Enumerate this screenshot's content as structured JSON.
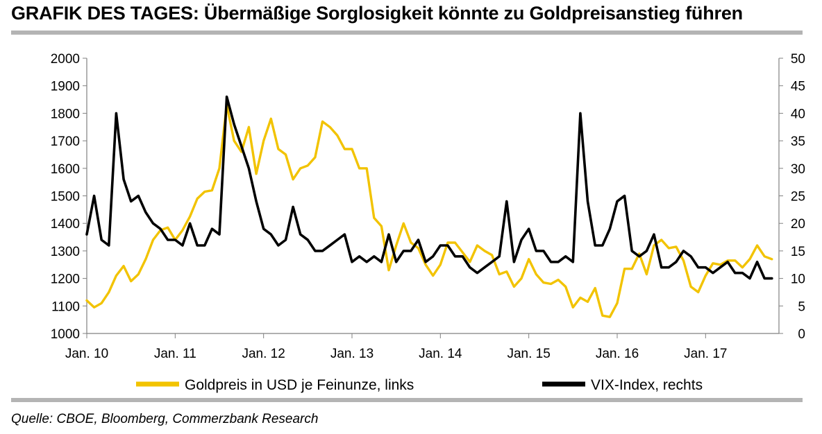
{
  "title": "GRAFIK DES TAGES: Übermäßige Sorglosigkeit könnte zu Goldpreisanstieg führen",
  "source": "Quelle: CBOE, Bloomberg, Commerzbank Research",
  "colors": {
    "gold": "#F2C300",
    "vix": "#000000",
    "axis": "#808080",
    "rule": "#b4b4b4"
  },
  "chart_data": {
    "type": "line",
    "x_ticks": [
      "Jan. 10",
      "Jan. 11",
      "Jan. 12",
      "Jan. 13",
      "Jan. 14",
      "Jan. 15",
      "Jan. 16",
      "Jan. 17"
    ],
    "left_axis": {
      "min": 1000,
      "max": 2000,
      "step": 100,
      "ticks": [
        "2000",
        "1900",
        "1800",
        "1700",
        "1600",
        "1500",
        "1400",
        "1300",
        "1200",
        "1100",
        "1000"
      ]
    },
    "right_axis": {
      "min": 0,
      "max": 50,
      "step": 5,
      "ticks": [
        "50",
        "45",
        "40",
        "35",
        "30",
        "25",
        "20",
        "15",
        "10",
        "5",
        "0"
      ]
    },
    "grid": false,
    "legend_position": "bottom",
    "series": [
      {
        "name": "Goldpreis in USD je Feinunze, links",
        "axis": "left",
        "color": "#F2C300",
        "points": [
          [
            "2010-01",
            1120
          ],
          [
            "2010-02",
            1095
          ],
          [
            "2010-03",
            1110
          ],
          [
            "2010-04",
            1150
          ],
          [
            "2010-05",
            1210
          ],
          [
            "2010-06",
            1245
          ],
          [
            "2010-07",
            1190
          ],
          [
            "2010-08",
            1215
          ],
          [
            "2010-09",
            1270
          ],
          [
            "2010-10",
            1340
          ],
          [
            "2010-11",
            1375
          ],
          [
            "2010-12",
            1385
          ],
          [
            "2011-01",
            1340
          ],
          [
            "2011-02",
            1375
          ],
          [
            "2011-03",
            1425
          ],
          [
            "2011-04",
            1490
          ],
          [
            "2011-05",
            1515
          ],
          [
            "2011-06",
            1520
          ],
          [
            "2011-07",
            1600
          ],
          [
            "2011-08",
            1830
          ],
          [
            "2011-09",
            1700
          ],
          [
            "2011-10",
            1660
          ],
          [
            "2011-11",
            1750
          ],
          [
            "2011-12",
            1580
          ],
          [
            "2012-01",
            1700
          ],
          [
            "2012-02",
            1780
          ],
          [
            "2012-03",
            1670
          ],
          [
            "2012-04",
            1650
          ],
          [
            "2012-05",
            1560
          ],
          [
            "2012-06",
            1600
          ],
          [
            "2012-07",
            1610
          ],
          [
            "2012-08",
            1640
          ],
          [
            "2012-09",
            1770
          ],
          [
            "2012-10",
            1750
          ],
          [
            "2012-11",
            1720
          ],
          [
            "2012-12",
            1670
          ],
          [
            "2013-01",
            1670
          ],
          [
            "2013-02",
            1600
          ],
          [
            "2013-03",
            1600
          ],
          [
            "2013-04",
            1420
          ],
          [
            "2013-05",
            1390
          ],
          [
            "2013-06",
            1230
          ],
          [
            "2013-07",
            1320
          ],
          [
            "2013-08",
            1400
          ],
          [
            "2013-09",
            1330
          ],
          [
            "2013-10",
            1310
          ],
          [
            "2013-11",
            1250
          ],
          [
            "2013-12",
            1210
          ],
          [
            "2014-01",
            1250
          ],
          [
            "2014-02",
            1330
          ],
          [
            "2014-03",
            1330
          ],
          [
            "2014-04",
            1295
          ],
          [
            "2014-05",
            1260
          ],
          [
            "2014-06",
            1320
          ],
          [
            "2014-07",
            1300
          ],
          [
            "2014-08",
            1285
          ],
          [
            "2014-09",
            1215
          ],
          [
            "2014-10",
            1225
          ],
          [
            "2014-11",
            1170
          ],
          [
            "2014-12",
            1200
          ],
          [
            "2015-01",
            1270
          ],
          [
            "2015-02",
            1215
          ],
          [
            "2015-03",
            1185
          ],
          [
            "2015-04",
            1180
          ],
          [
            "2015-05",
            1195
          ],
          [
            "2015-06",
            1170
          ],
          [
            "2015-07",
            1095
          ],
          [
            "2015-08",
            1130
          ],
          [
            "2015-09",
            1115
          ],
          [
            "2015-10",
            1165
          ],
          [
            "2015-11",
            1065
          ],
          [
            "2015-12",
            1060
          ],
          [
            "2016-01",
            1110
          ],
          [
            "2016-02",
            1235
          ],
          [
            "2016-03",
            1235
          ],
          [
            "2016-04",
            1290
          ],
          [
            "2016-05",
            1215
          ],
          [
            "2016-06",
            1320
          ],
          [
            "2016-07",
            1340
          ],
          [
            "2016-08",
            1310
          ],
          [
            "2016-09",
            1315
          ],
          [
            "2016-10",
            1265
          ],
          [
            "2016-11",
            1170
          ],
          [
            "2016-12",
            1150
          ],
          [
            "2017-01",
            1210
          ],
          [
            "2017-02",
            1255
          ],
          [
            "2017-03",
            1250
          ],
          [
            "2017-04",
            1265
          ],
          [
            "2017-05",
            1265
          ],
          [
            "2017-06",
            1240
          ],
          [
            "2017-07",
            1270
          ],
          [
            "2017-08",
            1320
          ],
          [
            "2017-09",
            1280
          ],
          [
            "2017-10",
            1270
          ]
        ]
      },
      {
        "name": "VIX-Index, rechts",
        "axis": "right",
        "color": "#000000",
        "points": [
          [
            "2010-01",
            18
          ],
          [
            "2010-02",
            25
          ],
          [
            "2010-03",
            17
          ],
          [
            "2010-04",
            16
          ],
          [
            "2010-05",
            40
          ],
          [
            "2010-06",
            28
          ],
          [
            "2010-07",
            24
          ],
          [
            "2010-08",
            25
          ],
          [
            "2010-09",
            22
          ],
          [
            "2010-10",
            20
          ],
          [
            "2010-11",
            19
          ],
          [
            "2010-12",
            17
          ],
          [
            "2011-01",
            17
          ],
          [
            "2011-02",
            16
          ],
          [
            "2011-03",
            20
          ],
          [
            "2011-04",
            16
          ],
          [
            "2011-05",
            16
          ],
          [
            "2011-06",
            19
          ],
          [
            "2011-07",
            18
          ],
          [
            "2011-08",
            43
          ],
          [
            "2011-09",
            38
          ],
          [
            "2011-10",
            34
          ],
          [
            "2011-11",
            30
          ],
          [
            "2011-12",
            24
          ],
          [
            "2012-01",
            19
          ],
          [
            "2012-02",
            18
          ],
          [
            "2012-03",
            16
          ],
          [
            "2012-04",
            17
          ],
          [
            "2012-05",
            23
          ],
          [
            "2012-06",
            18
          ],
          [
            "2012-07",
            17
          ],
          [
            "2012-08",
            15
          ],
          [
            "2012-09",
            15
          ],
          [
            "2012-10",
            16
          ],
          [
            "2012-11",
            17
          ],
          [
            "2012-12",
            18
          ],
          [
            "2013-01",
            13
          ],
          [
            "2013-02",
            14
          ],
          [
            "2013-03",
            13
          ],
          [
            "2013-04",
            14
          ],
          [
            "2013-05",
            13
          ],
          [
            "2013-06",
            18
          ],
          [
            "2013-07",
            13
          ],
          [
            "2013-08",
            15
          ],
          [
            "2013-09",
            15
          ],
          [
            "2013-10",
            17
          ],
          [
            "2013-11",
            13
          ],
          [
            "2013-12",
            14
          ],
          [
            "2014-01",
            16
          ],
          [
            "2014-02",
            16
          ],
          [
            "2014-03",
            14
          ],
          [
            "2014-04",
            14
          ],
          [
            "2014-05",
            12
          ],
          [
            "2014-06",
            11
          ],
          [
            "2014-07",
            12
          ],
          [
            "2014-08",
            13
          ],
          [
            "2014-09",
            14
          ],
          [
            "2014-10",
            24
          ],
          [
            "2014-11",
            13
          ],
          [
            "2014-12",
            17
          ],
          [
            "2015-01",
            19
          ],
          [
            "2015-02",
            15
          ],
          [
            "2015-03",
            15
          ],
          [
            "2015-04",
            13
          ],
          [
            "2015-05",
            13
          ],
          [
            "2015-06",
            14
          ],
          [
            "2015-07",
            13
          ],
          [
            "2015-08",
            40
          ],
          [
            "2015-09",
            24
          ],
          [
            "2015-10",
            16
          ],
          [
            "2015-11",
            16
          ],
          [
            "2015-12",
            19
          ],
          [
            "2016-01",
            24
          ],
          [
            "2016-02",
            25
          ],
          [
            "2016-03",
            15
          ],
          [
            "2016-04",
            14
          ],
          [
            "2016-05",
            15
          ],
          [
            "2016-06",
            18
          ],
          [
            "2016-07",
            12
          ],
          [
            "2016-08",
            12
          ],
          [
            "2016-09",
            13
          ],
          [
            "2016-10",
            15
          ],
          [
            "2016-11",
            14
          ],
          [
            "2016-12",
            12
          ],
          [
            "2017-01",
            12
          ],
          [
            "2017-02",
            11
          ],
          [
            "2017-03",
            12
          ],
          [
            "2017-04",
            13
          ],
          [
            "2017-05",
            11
          ],
          [
            "2017-06",
            11
          ],
          [
            "2017-07",
            10
          ],
          [
            "2017-08",
            13
          ],
          [
            "2017-09",
            10
          ],
          [
            "2017-10",
            10
          ]
        ]
      }
    ]
  }
}
